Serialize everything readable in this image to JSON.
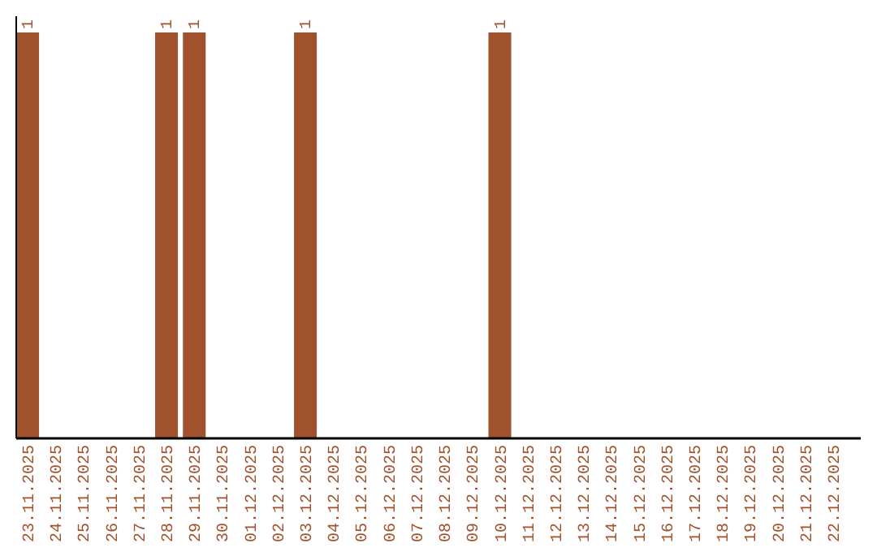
{
  "chart_data": {
    "type": "bar",
    "color": "#a0522d",
    "categories": [
      "23.11.2025",
      "24.11.2025",
      "25.11.2025",
      "26.11.2025",
      "27.11.2025",
      "28.11.2025",
      "29.11.2025",
      "30.11.2025",
      "01.12.2025",
      "02.12.2025",
      "03.12.2025",
      "04.12.2025",
      "05.12.2025",
      "06.12.2025",
      "07.12.2025",
      "08.12.2025",
      "09.12.2025",
      "10.12.2025",
      "11.12.2025",
      "12.12.2025",
      "13.12.2025",
      "14.12.2025",
      "15.12.2025",
      "16.12.2025",
      "17.12.2025",
      "18.12.2025",
      "19.12.2025",
      "20.12.2025",
      "21.12.2025",
      "22.12.2025"
    ],
    "values": [
      1,
      0,
      0,
      0,
      0,
      1,
      1,
      0,
      0,
      0,
      1,
      0,
      0,
      0,
      0,
      0,
      0,
      1,
      0,
      0,
      0,
      0,
      0,
      0,
      0,
      0,
      0,
      0,
      0,
      0
    ],
    "value_labels": [
      "1",
      null,
      null,
      null,
      null,
      "1",
      "1",
      null,
      null,
      null,
      "1",
      null,
      null,
      null,
      null,
      null,
      null,
      "1",
      null,
      null,
      null,
      null,
      null,
      null,
      null,
      null,
      null,
      null,
      null,
      null
    ]
  }
}
